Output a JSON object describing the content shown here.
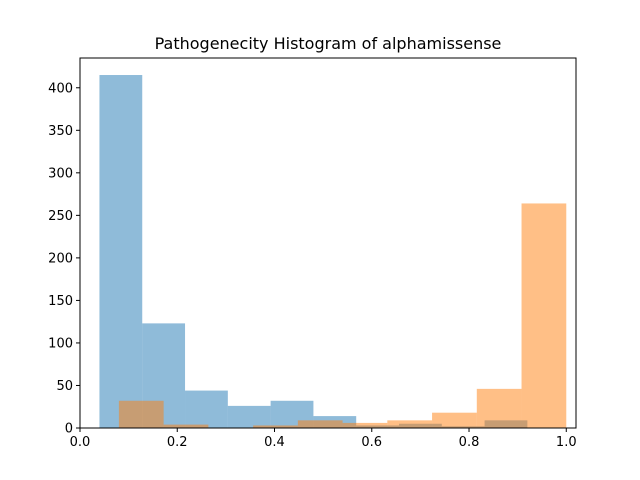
{
  "chart_data": {
    "type": "bar",
    "subtype": "overlapping-histogram",
    "title": "Pathogenecity Histogram of alphamissense",
    "xlabel": "",
    "ylabel": "",
    "xlim": [
      0.0,
      1.02
    ],
    "ylim": [
      0,
      435
    ],
    "xticks": [
      "0.0",
      "0.2",
      "0.4",
      "0.6",
      "0.8",
      "1.0"
    ],
    "yticks": [
      "0",
      "50",
      "100",
      "150",
      "200",
      "250",
      "300",
      "350",
      "400"
    ],
    "grid": false,
    "legend": "none",
    "series": [
      {
        "color": "#1f77b4",
        "opacity": 0.5,
        "bins": [
          {
            "x0": 0.04,
            "x1": 0.128,
            "count": 415
          },
          {
            "x0": 0.128,
            "x1": 0.216,
            "count": 123
          },
          {
            "x0": 0.216,
            "x1": 0.304,
            "count": 44
          },
          {
            "x0": 0.304,
            "x1": 0.392,
            "count": 26
          },
          {
            "x0": 0.392,
            "x1": 0.48,
            "count": 32
          },
          {
            "x0": 0.48,
            "x1": 0.568,
            "count": 14
          },
          {
            "x0": 0.568,
            "x1": 0.656,
            "count": 3
          },
          {
            "x0": 0.656,
            "x1": 0.744,
            "count": 5
          },
          {
            "x0": 0.744,
            "x1": 0.832,
            "count": 2
          },
          {
            "x0": 0.832,
            "x1": 0.92,
            "count": 9
          }
        ]
      },
      {
        "color": "#ff7f0e",
        "opacity": 0.5,
        "bins": [
          {
            "x0": 0.08,
            "x1": 0.172,
            "count": 32
          },
          {
            "x0": 0.172,
            "x1": 0.264,
            "count": 4
          },
          {
            "x0": 0.264,
            "x1": 0.356,
            "count": 0
          },
          {
            "x0": 0.356,
            "x1": 0.448,
            "count": 3
          },
          {
            "x0": 0.448,
            "x1": 0.54,
            "count": 9
          },
          {
            "x0": 0.54,
            "x1": 0.632,
            "count": 6
          },
          {
            "x0": 0.632,
            "x1": 0.724,
            "count": 9
          },
          {
            "x0": 0.724,
            "x1": 0.816,
            "count": 18
          },
          {
            "x0": 0.816,
            "x1": 0.908,
            "count": 46
          },
          {
            "x0": 0.908,
            "x1": 1.0,
            "count": 264
          }
        ]
      }
    ]
  }
}
